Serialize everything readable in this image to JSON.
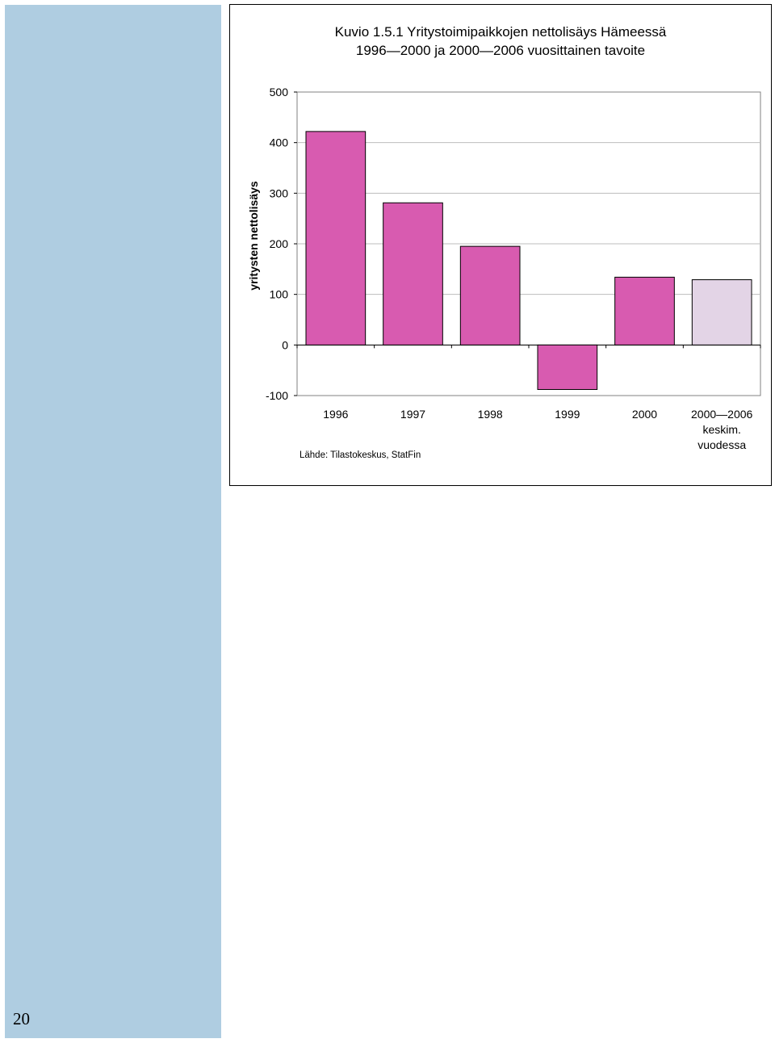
{
  "page": {
    "number": "20"
  },
  "chart_data": {
    "type": "bar",
    "title": "Kuvio 1.5.1 Yritystoimipaikkojen nettolisäys Hämeessä",
    "subtitle": "1996—2000 ja 2000—2006 vuosittainen tavoite",
    "ylabel": "yritysten nettolisäys",
    "xlabel": "",
    "ylim": [
      -100,
      500
    ],
    "yticks": [
      -100,
      0,
      100,
      200,
      300,
      400,
      500
    ],
    "grid": true,
    "categories": [
      {
        "lines": [
          "1996"
        ]
      },
      {
        "lines": [
          "1997"
        ]
      },
      {
        "lines": [
          "1998"
        ]
      },
      {
        "lines": [
          "1999"
        ]
      },
      {
        "lines": [
          "2000"
        ]
      },
      {
        "lines": [
          "2000—2006",
          "keskim.",
          "vuodessa"
        ]
      }
    ],
    "values": [
      422,
      281,
      195,
      -88,
      134,
      129
    ],
    "bar_colors": [
      "#d85bb0",
      "#d85bb0",
      "#d85bb0",
      "#d85bb0",
      "#d85bb0",
      "#e3d4e6"
    ],
    "source": "Lähde: Tilastokeskus, StatFin"
  }
}
